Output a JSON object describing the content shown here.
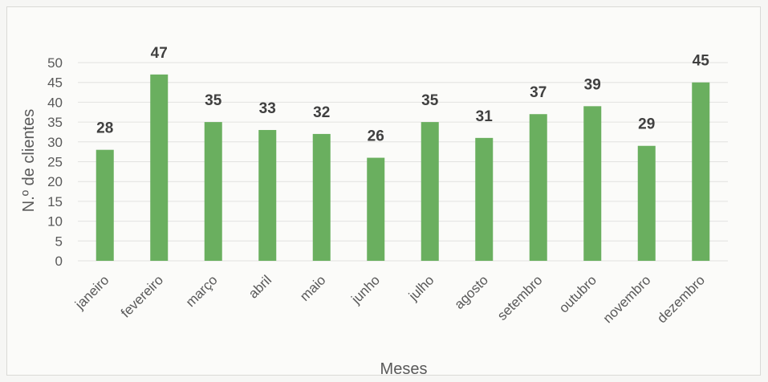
{
  "chart_data": {
    "type": "bar",
    "title": "",
    "xlabel": "Meses",
    "ylabel": "N.º de clientes",
    "categories": [
      "janeiro",
      "fevereiro",
      "março",
      "abril",
      "maio",
      "junho",
      "julho",
      "agosto",
      "setembro",
      "outubro",
      "novembro",
      "dezembro"
    ],
    "values": [
      28,
      47,
      35,
      33,
      32,
      26,
      35,
      31,
      37,
      39,
      29,
      45
    ],
    "ylim": [
      0,
      50
    ],
    "yticks": [
      0,
      5,
      10,
      15,
      20,
      25,
      30,
      35,
      40,
      45,
      50
    ],
    "grid": true,
    "bar_color": "#6aaf5f",
    "legend": "none",
    "data_labels": true
  }
}
